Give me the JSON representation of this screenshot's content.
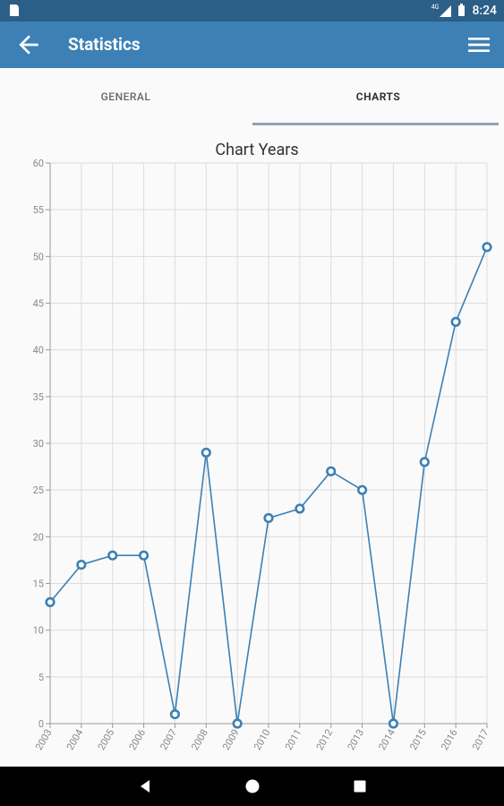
{
  "status_bar": {
    "network": "4G",
    "time": "8:24"
  },
  "app_bar": {
    "title": "Statistics",
    "back_icon": "arrow-left-icon",
    "menu_icon": "hamburger-menu-icon",
    "color": "#3c80b5"
  },
  "tabs": [
    {
      "label": "GENERAL",
      "active": false
    },
    {
      "label": "CHARTS",
      "active": true
    }
  ],
  "chart_data": {
    "type": "line",
    "title": "Chart Years",
    "x": [
      "2003",
      "2004",
      "2005",
      "2006",
      "2007",
      "2008",
      "2009",
      "2010",
      "2011",
      "2012",
      "2013",
      "2014",
      "2015",
      "2016",
      "2017"
    ],
    "series": [
      {
        "values": [
          13,
          17,
          18,
          18,
          1,
          29,
          0,
          22,
          23,
          27,
          25,
          0,
          28,
          43,
          51
        ],
        "color": "#3c80b5"
      }
    ],
    "ylim": [
      0,
      60
    ],
    "yticks": [
      0,
      5,
      10,
      15,
      20,
      25,
      30,
      35,
      40,
      45,
      50,
      55,
      60
    ],
    "grid": true,
    "legend": "none"
  },
  "nav_bar": {
    "back_icon": "nav-back-triangle-icon",
    "home_icon": "nav-home-circle-icon",
    "recents_icon": "nav-recents-square-icon"
  }
}
